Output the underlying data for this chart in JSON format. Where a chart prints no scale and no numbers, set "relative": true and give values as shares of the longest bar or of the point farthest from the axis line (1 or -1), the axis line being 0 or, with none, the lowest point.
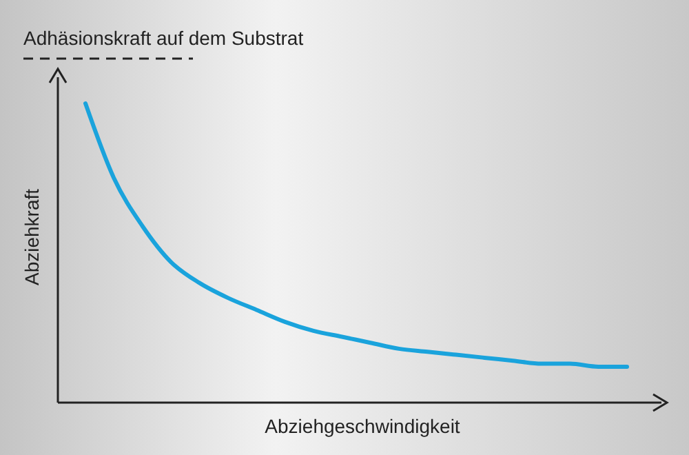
{
  "chart_data": {
    "type": "line",
    "relative": true,
    "xlabel": "Abziehgeschwindigkeit",
    "ylabel": "Abziehkraft",
    "categories": [
      null,
      null,
      null,
      null,
      null,
      null,
      null,
      null,
      null,
      null,
      null,
      null,
      null,
      null,
      null,
      null,
      null,
      null,
      null,
      null
    ],
    "series": [
      {
        "color": "#1aa3dc",
        "values": [
          1,
          0.75,
          0.59,
          0.47,
          0.4,
          0.35,
          0.31,
          0.27,
          0.24,
          0.22,
          0.2,
          0.18,
          0.17,
          0.16,
          0.15,
          0.14,
          0.13,
          0.13,
          0.12,
          0.12
        ]
      }
    ],
    "ref_lines": [
      {
        "axis": "y",
        "value": 1.15,
        "label": "Adhäsionskraft auf dem Substrat",
        "color": "#222222",
        "line_style": "dashed"
      }
    ],
    "marker": "none",
    "line_style": "solid"
  }
}
